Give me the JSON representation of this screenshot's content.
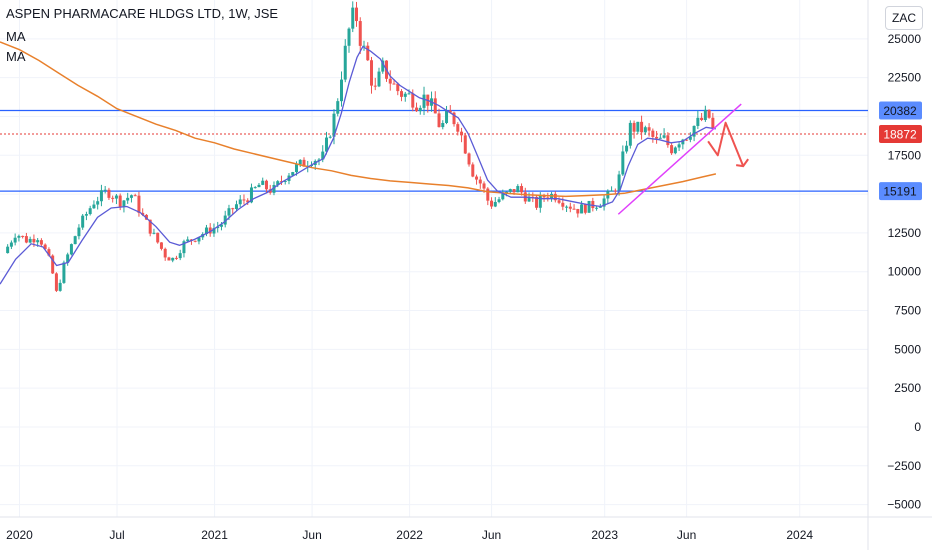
{
  "header": {
    "title": "ASPEN PHARMACARE HLDGS LTD, 1W, JSE",
    "indicators": [
      "MA",
      "MA"
    ],
    "currency_button": "ZAC"
  },
  "colors": {
    "up": "#26a69a",
    "down": "#ef5350",
    "ma_fast": "#5b5bd6",
    "ma_slow": "#e8802c",
    "horizontal_line": "#2962ff",
    "current_price_line": "#e53935",
    "trendline": "#e040fb",
    "arrow": "#ef5350",
    "grid": "#f0f3fa"
  },
  "chart_data": {
    "type": "candlestick",
    "y_axis": {
      "min": -5800,
      "max": 27500,
      "ticks": [
        -5000,
        -2500,
        0,
        2500,
        5000,
        7500,
        10000,
        12500,
        15000,
        17500,
        20000,
        22500,
        25000
      ],
      "tick_labels": [
        "−5000",
        "−2500",
        "0",
        "2500",
        "5000",
        "7500",
        "10000",
        "12500",
        "15000",
        "17500",
        "20000",
        "22500",
        "25000"
      ],
      "hidden_ticks": [
        20000
      ]
    },
    "x_axis": {
      "start": "2019.9",
      "end": "2024.35",
      "ticks": [
        2020.0,
        2020.5,
        2021.0,
        2021.5,
        2022.0,
        2022.42,
        2023.0,
        2023.42,
        2024.0
      ],
      "tick_labels": [
        "2020",
        "Jul",
        "2021",
        "Jun",
        "2022",
        "Jun",
        "2023",
        "Jun",
        "2024"
      ]
    },
    "price_labels": [
      {
        "value": 20382,
        "label": "20382",
        "style": "blue-line"
      },
      {
        "value": 18872,
        "label": "18872",
        "style": "current-price"
      },
      {
        "value": 15191,
        "label": "15191",
        "style": "blue-line"
      }
    ],
    "price_path": [
      [
        2019.92,
        11200
      ],
      [
        2019.98,
        12500
      ],
      [
        2020.04,
        12000
      ],
      [
        2020.1,
        12300
      ],
      [
        2020.16,
        10500
      ],
      [
        2020.19,
        8600
      ],
      [
        2020.23,
        10500
      ],
      [
        2020.3,
        12800
      ],
      [
        2020.38,
        14500
      ],
      [
        2020.45,
        15200
      ],
      [
        2020.52,
        14500
      ],
      [
        2020.58,
        15000
      ],
      [
        2020.62,
        13800
      ],
      [
        2020.68,
        12500
      ],
      [
        2020.75,
        11000
      ],
      [
        2020.79,
        10800
      ],
      [
        2020.84,
        11800
      ],
      [
        2020.9,
        12200
      ],
      [
        2020.96,
        12600
      ],
      [
        2021.03,
        13000
      ],
      [
        2021.1,
        14200
      ],
      [
        2021.17,
        14800
      ],
      [
        2021.23,
        15600
      ],
      [
        2021.3,
        15200
      ],
      [
        2021.37,
        16300
      ],
      [
        2021.43,
        16800
      ],
      [
        2021.5,
        17300
      ],
      [
        2021.55,
        17200
      ],
      [
        2021.58,
        18500
      ],
      [
        2021.62,
        20300
      ],
      [
        2021.66,
        23500
      ],
      [
        2021.69,
        25600
      ],
      [
        2021.72,
        26900
      ],
      [
        2021.75,
        24800
      ],
      [
        2021.78,
        23800
      ],
      [
        2021.82,
        21500
      ],
      [
        2021.86,
        23200
      ],
      [
        2021.9,
        22300
      ],
      [
        2021.95,
        21500
      ],
      [
        2022.0,
        21300
      ],
      [
        2022.04,
        20800
      ],
      [
        2022.08,
        21300
      ],
      [
        2022.12,
        20500
      ],
      [
        2022.16,
        19200
      ],
      [
        2022.2,
        20200
      ],
      [
        2022.25,
        19400
      ],
      [
        2022.29,
        17800
      ],
      [
        2022.33,
        16200
      ],
      [
        2022.37,
        15600
      ],
      [
        2022.41,
        14300
      ],
      [
        2022.45,
        14600
      ],
      [
        2022.5,
        15000
      ],
      [
        2022.55,
        15400
      ],
      [
        2022.6,
        14800
      ],
      [
        2022.65,
        14300
      ],
      [
        2022.7,
        15000
      ],
      [
        2022.75,
        14900
      ],
      [
        2022.8,
        14400
      ],
      [
        2022.86,
        14000
      ],
      [
        2022.92,
        14200
      ],
      [
        2022.98,
        14500
      ],
      [
        2023.03,
        15000
      ],
      [
        2023.07,
        15800
      ],
      [
        2023.1,
        17800
      ],
      [
        2023.13,
        19300
      ],
      [
        2023.18,
        19200
      ],
      [
        2023.22,
        19000
      ],
      [
        2023.27,
        18300
      ],
      [
        2023.3,
        18600
      ],
      [
        2023.34,
        17900
      ],
      [
        2023.38,
        18500
      ],
      [
        2023.42,
        18800
      ],
      [
        2023.46,
        19400
      ],
      [
        2023.5,
        19800
      ],
      [
        2023.53,
        20200
      ],
      [
        2023.55,
        19200
      ],
      [
        2023.57,
        18872
      ]
    ],
    "ma_fast": [
      [
        2019.9,
        9200
      ],
      [
        2019.98,
        10800
      ],
      [
        2020.06,
        11800
      ],
      [
        2020.12,
        11600
      ],
      [
        2020.19,
        10400
      ],
      [
        2020.25,
        10600
      ],
      [
        2020.32,
        12000
      ],
      [
        2020.4,
        13500
      ],
      [
        2020.47,
        14100
      ],
      [
        2020.55,
        14200
      ],
      [
        2020.62,
        13800
      ],
      [
        2020.7,
        12900
      ],
      [
        2020.77,
        11900
      ],
      [
        2020.82,
        11700
      ],
      [
        2020.9,
        12100
      ],
      [
        2020.98,
        12600
      ],
      [
        2021.05,
        13200
      ],
      [
        2021.12,
        14000
      ],
      [
        2021.2,
        14700
      ],
      [
        2021.27,
        15100
      ],
      [
        2021.35,
        15800
      ],
      [
        2021.42,
        16300
      ],
      [
        2021.5,
        16900
      ],
      [
        2021.56,
        17300
      ],
      [
        2021.61,
        18600
      ],
      [
        2021.65,
        20200
      ],
      [
        2021.69,
        22200
      ],
      [
        2021.73,
        23800
      ],
      [
        2021.76,
        24500
      ],
      [
        2021.8,
        24200
      ],
      [
        2021.85,
        23700
      ],
      [
        2021.9,
        22600
      ],
      [
        2021.95,
        22000
      ],
      [
        2022.0,
        21600
      ],
      [
        2022.05,
        21200
      ],
      [
        2022.1,
        21000
      ],
      [
        2022.15,
        20700
      ],
      [
        2022.2,
        20300
      ],
      [
        2022.25,
        19900
      ],
      [
        2022.3,
        18900
      ],
      [
        2022.35,
        17400
      ],
      [
        2022.4,
        15900
      ],
      [
        2022.45,
        15200
      ],
      [
        2022.52,
        14800
      ],
      [
        2022.6,
        14800
      ],
      [
        2022.68,
        14700
      ],
      [
        2022.76,
        14700
      ],
      [
        2022.84,
        14500
      ],
      [
        2022.92,
        14300
      ],
      [
        2022.98,
        14200
      ],
      [
        2023.04,
        14500
      ],
      [
        2023.08,
        15300
      ],
      [
        2023.12,
        16800
      ],
      [
        2023.17,
        18200
      ],
      [
        2023.22,
        18600
      ],
      [
        2023.28,
        18500
      ],
      [
        2023.34,
        18300
      ],
      [
        2023.4,
        18400
      ],
      [
        2023.46,
        18900
      ],
      [
        2023.52,
        19300
      ],
      [
        2023.57,
        19200
      ]
    ],
    "ma_slow": [
      [
        2019.9,
        24800
      ],
      [
        2020.0,
        24300
      ],
      [
        2020.1,
        23600
      ],
      [
        2020.2,
        22800
      ],
      [
        2020.3,
        22000
      ],
      [
        2020.4,
        21300
      ],
      [
        2020.5,
        20500
      ],
      [
        2020.6,
        20000
      ],
      [
        2020.7,
        19500
      ],
      [
        2020.8,
        19100
      ],
      [
        2020.9,
        18600
      ],
      [
        2021.0,
        18300
      ],
      [
        2021.1,
        17900
      ],
      [
        2021.2,
        17600
      ],
      [
        2021.3,
        17300
      ],
      [
        2021.4,
        17000
      ],
      [
        2021.5,
        16700
      ],
      [
        2021.6,
        16500
      ],
      [
        2021.7,
        16200
      ],
      [
        2021.8,
        16000
      ],
      [
        2021.9,
        15850
      ],
      [
        2022.0,
        15750
      ],
      [
        2022.1,
        15650
      ],
      [
        2022.2,
        15550
      ],
      [
        2022.3,
        15400
      ],
      [
        2022.4,
        15150
      ],
      [
        2022.5,
        15050
      ],
      [
        2022.6,
        14950
      ],
      [
        2022.7,
        14900
      ],
      [
        2022.8,
        14850
      ],
      [
        2022.9,
        14900
      ],
      [
        2023.0,
        14950
      ],
      [
        2023.1,
        15050
      ],
      [
        2023.2,
        15300
      ],
      [
        2023.3,
        15550
      ],
      [
        2023.4,
        15800
      ],
      [
        2023.5,
        16100
      ],
      [
        2023.57,
        16300
      ]
    ],
    "trendline": {
      "from": [
        2023.07,
        13700
      ],
      "to": [
        2023.7,
        20800
      ]
    },
    "forecast_arrow": [
      [
        2023.53,
        18400
      ],
      [
        2023.58,
        17500
      ],
      [
        2023.62,
        19600
      ],
      [
        2023.71,
        16800
      ]
    ]
  }
}
